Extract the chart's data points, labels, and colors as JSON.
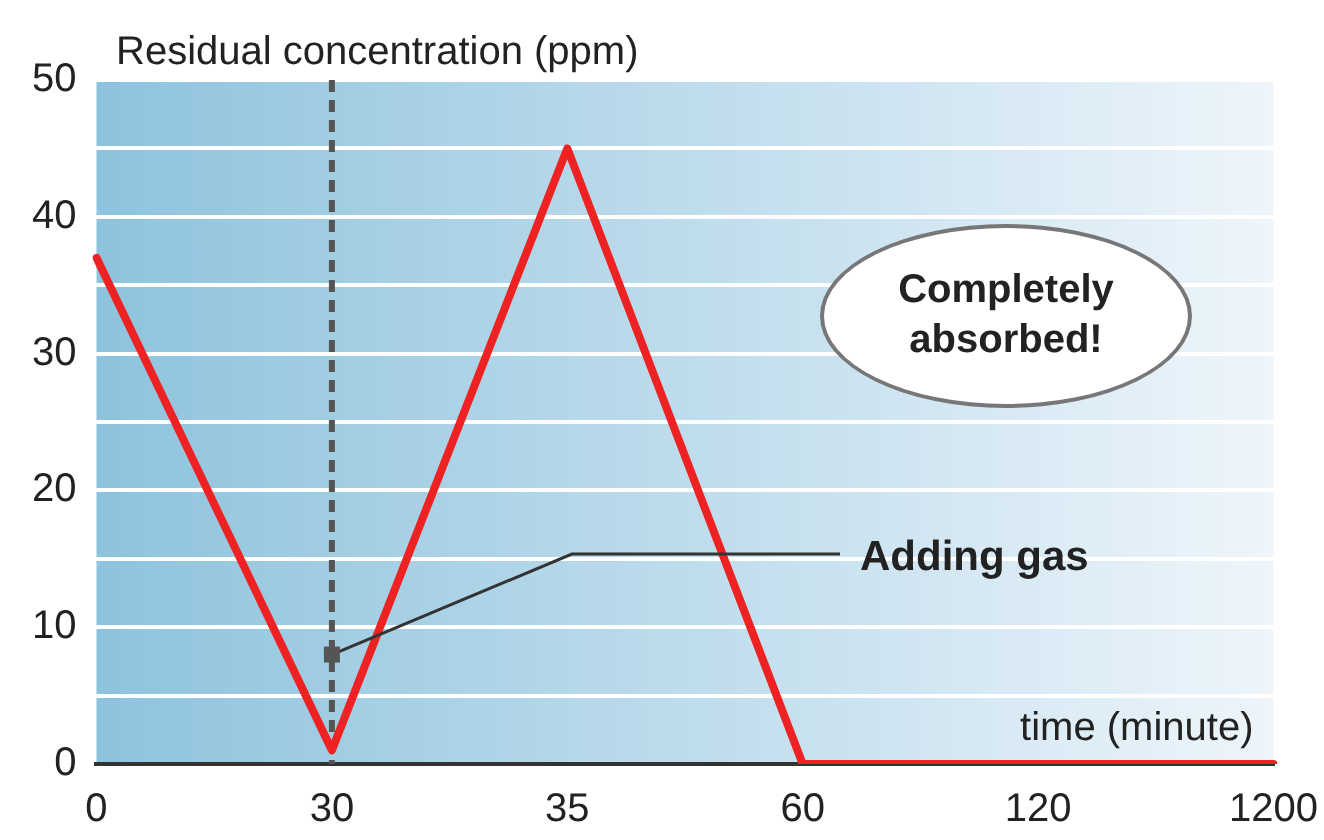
{
  "chart_data": {
    "type": "line",
    "ylabel": "Residual concentration (ppm)",
    "xlabel": "time (minute)",
    "categories": [
      "0",
      "30",
      "35",
      "60",
      "120",
      "1200"
    ],
    "series": [
      {
        "color": "#ee2222",
        "values": [
          37,
          1,
          45,
          0,
          0,
          0
        ]
      }
    ],
    "ylim": [
      0,
      50
    ],
    "yticks": [
      0,
      {
        "value": 5,
        "label": null
      },
      10,
      {
        "value": 15,
        "label": null
      },
      20,
      {
        "value": 25,
        "label": null
      },
      30,
      {
        "value": 35,
        "label": null
      },
      40,
      {
        "value": 45,
        "label": null
      },
      50
    ],
    "grid": "y",
    "legend": false,
    "marker": "none",
    "line_style": "solid",
    "ref_lines": [
      {
        "axis": "x",
        "value": "30",
        "color": "#555555",
        "line_style": "dashed"
      }
    ],
    "annotations": [
      "Completely absorbed!",
      {
        "text": "Adding gas",
        "x": "30",
        "y": 8
      }
    ]
  }
}
